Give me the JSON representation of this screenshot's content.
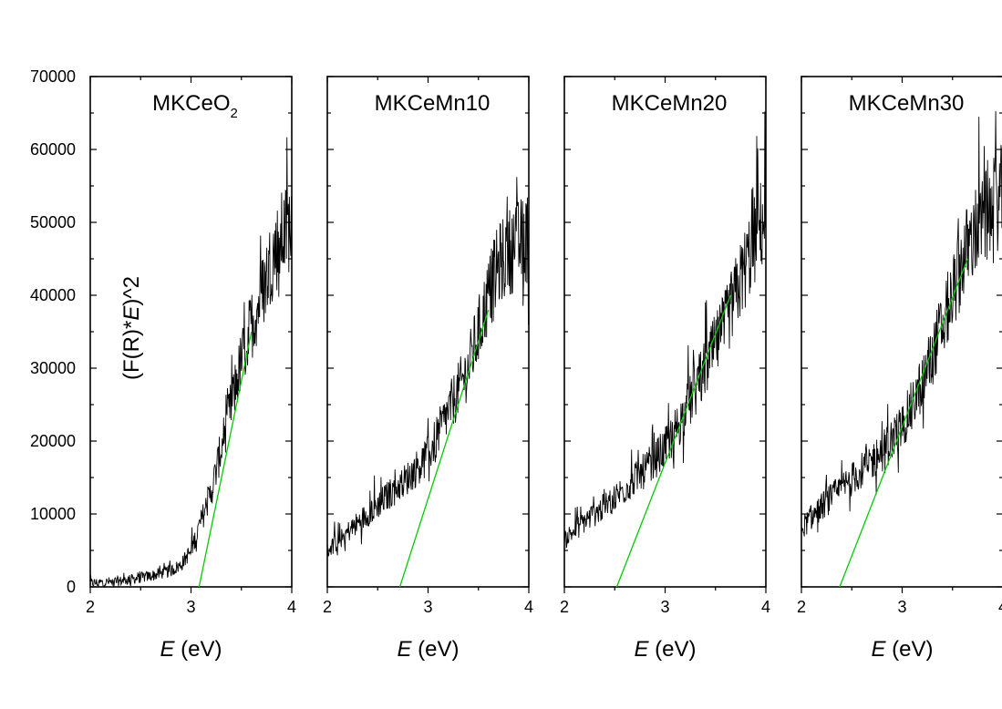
{
  "chart_data": {
    "type": "line",
    "ylabel": "(F(R)*E)^2",
    "ylim": [
      0,
      70000
    ],
    "y_ticks": [
      "0",
      "10000",
      "20000",
      "30000",
      "40000",
      "50000",
      "60000",
      "70000"
    ],
    "x_ticks": [
      "2",
      "3",
      "4"
    ],
    "xlim": [
      2,
      4
    ],
    "series_color": "#000000",
    "fit_color": "#00cc00",
    "panels": [
      {
        "title": "MKCeO2",
        "title_main": "MKCeO",
        "title_sub": "2",
        "xlabel_italic": "E",
        "xlabel_rest": " (eV)",
        "band_gap_eV": 3.08,
        "fit_end": {
          "x": 3.6,
          "y": 35000
        },
        "spectrum": {
          "x": [
            2.0,
            2.3,
            2.6,
            2.8,
            2.9,
            3.0,
            3.1,
            3.2,
            3.3,
            3.4,
            3.5,
            3.6,
            3.7,
            3.8,
            3.9,
            4.0
          ],
          "y": [
            500,
            800,
            1500,
            2200,
            3000,
            5000,
            9000,
            13000,
            19000,
            25000,
            31000,
            36000,
            40000,
            45000,
            48000,
            50000
          ]
        }
      },
      {
        "title": "MKCeMn10",
        "title_main": "MKCeMn10",
        "title_sub": "",
        "xlabel_italic": "E",
        "xlabel_rest": " (eV)",
        "band_gap_eV": 2.72,
        "fit_end": {
          "x": 3.6,
          "y": 38000
        },
        "spectrum": {
          "x": [
            2.0,
            2.2,
            2.4,
            2.6,
            2.8,
            3.0,
            3.2,
            3.4,
            3.5,
            3.6,
            3.7,
            3.8,
            3.9,
            4.0
          ],
          "y": [
            5000,
            7500,
            10000,
            12500,
            15000,
            18000,
            24000,
            30000,
            35000,
            40000,
            44000,
            46000,
            47000,
            48000
          ]
        }
      },
      {
        "title": "MKCeMn20",
        "title_main": "MKCeMn20",
        "title_sub": "",
        "xlabel_italic": "E",
        "xlabel_rest": " (eV)",
        "band_gap_eV": 2.52,
        "fit_end": {
          "x": 3.65,
          "y": 40000
        },
        "spectrum": {
          "x": [
            2.0,
            2.2,
            2.4,
            2.6,
            2.8,
            3.0,
            3.2,
            3.4,
            3.6,
            3.7,
            3.8,
            3.9,
            4.0
          ],
          "y": [
            6500,
            9000,
            11000,
            13500,
            16000,
            19000,
            24000,
            30000,
            36000,
            40000,
            44000,
            48000,
            51000
          ]
        }
      },
      {
        "title": "MKCeMn30",
        "title_main": "MKCeMn30",
        "title_sub": "",
        "xlabel_italic": "E",
        "xlabel_rest": " (eV)",
        "band_gap_eV": 2.38,
        "fit_end": {
          "x": 3.65,
          "y": 45000
        },
        "spectrum": {
          "x": [
            2.0,
            2.2,
            2.4,
            2.6,
            2.8,
            3.0,
            3.2,
            3.4,
            3.5,
            3.6,
            3.7,
            3.8,
            3.9,
            4.0
          ],
          "y": [
            8000,
            11000,
            13500,
            16000,
            18500,
            22000,
            28000,
            36000,
            40000,
            45000,
            48000,
            50000,
            52000,
            54000
          ]
        }
      }
    ]
  }
}
